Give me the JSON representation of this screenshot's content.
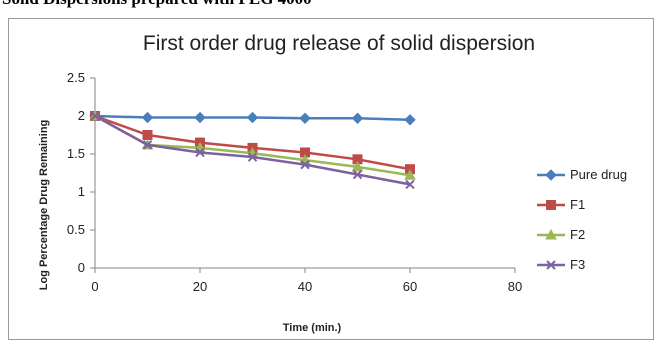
{
  "page": {
    "heading": "Solid Dispersions prepared with PEG 4000"
  },
  "chart_data": {
    "type": "line",
    "title": "First order drug release of solid dispersion",
    "xlabel": "Time (min.)",
    "ylabel": "Log Percentage Drug Remaining",
    "x": [
      0,
      10,
      20,
      30,
      40,
      50,
      60
    ],
    "xlim": [
      0,
      80
    ],
    "xticks": [
      "0",
      "20",
      "40",
      "60",
      "80"
    ],
    "ylim": [
      0,
      2.5
    ],
    "yticks": [
      "0",
      "0.5",
      "1",
      "1.5",
      "2",
      "2.5"
    ],
    "grid": false,
    "legend": "right",
    "series": [
      {
        "name": "Pure drug",
        "color": "#4a7ebb",
        "marker": "diamond",
        "values": [
          2.0,
          1.98,
          1.98,
          1.98,
          1.97,
          1.97,
          1.95
        ]
      },
      {
        "name": "F1",
        "color": "#be4b48",
        "marker": "square",
        "values": [
          2.0,
          1.75,
          1.65,
          1.58,
          1.52,
          1.43,
          1.3
        ]
      },
      {
        "name": "F2",
        "color": "#98b954",
        "marker": "triangle",
        "values": [
          2.0,
          1.62,
          1.58,
          1.51,
          1.42,
          1.33,
          1.22
        ]
      },
      {
        "name": "F3",
        "color": "#7d60a0",
        "marker": "x",
        "values": [
          2.0,
          1.62,
          1.52,
          1.46,
          1.36,
          1.23,
          1.1
        ]
      }
    ]
  }
}
